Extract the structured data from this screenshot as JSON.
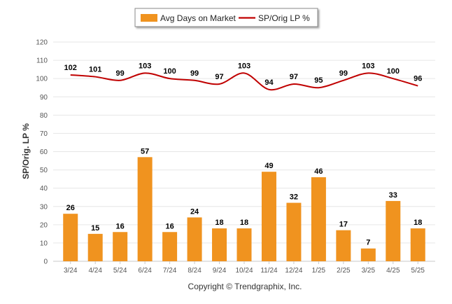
{
  "chart_data": {
    "type": "bar",
    "categories": [
      "3/24",
      "4/24",
      "5/24",
      "6/24",
      "7/24",
      "8/24",
      "9/24",
      "10/24",
      "11/24",
      "12/24",
      "1/25",
      "2/25",
      "3/25",
      "4/25",
      "5/25"
    ],
    "series": [
      {
        "name": "Avg Days on Market",
        "type": "bar",
        "color": "#f0931f",
        "values": [
          26,
          15,
          16,
          57,
          16,
          24,
          18,
          18,
          49,
          32,
          46,
          17,
          7,
          33,
          18
        ]
      },
      {
        "name": "SP/Orig LP %",
        "type": "line",
        "color": "#c00000",
        "values": [
          102,
          101,
          99,
          103,
          100,
          99,
          97,
          103,
          94,
          97,
          95,
          99,
          103,
          100,
          96
        ]
      }
    ],
    "ylabel": "SP/Orig. LP %",
    "xlabel": "",
    "ylim": [
      0,
      120
    ],
    "yticks": [
      0,
      10,
      20,
      30,
      40,
      50,
      60,
      70,
      80,
      90,
      100,
      110,
      120
    ],
    "grid": true,
    "legend_position": "top-center"
  },
  "footer": {
    "copyright": "Copyright © Trendgraphix, Inc."
  }
}
